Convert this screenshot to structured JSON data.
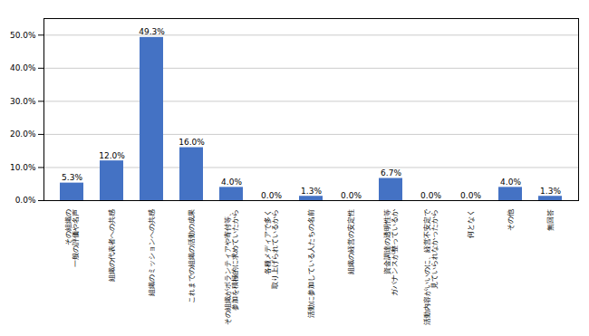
{
  "chart_data": {
    "type": "bar",
    "categories": [
      "その組織の\n一般の評価や名声",
      "組織の代表者への共感",
      "組織のミッションへの共感",
      "これまでの組織の活動の成果",
      "その組織がボランティアや寄付等、\n参加を積極的に求めていたから",
      "各種メディアで多く\n取り上げられているから",
      "活動に参加している人たちの名前",
      "組織の経営の安定性",
      "資金調達の透明性等\nガバナンスが整っているか",
      "活動内容がいいのに、経営不安定で\n見ていられなかったから",
      "何となく",
      "その他",
      "無回答"
    ],
    "values": [
      5.3,
      12.0,
      49.3,
      16.0,
      4.0,
      0.0,
      1.3,
      0.0,
      6.7,
      0.0,
      0.0,
      4.0,
      1.3
    ],
    "value_labels": [
      "5.3%",
      "12.0%",
      "49.3%",
      "16.0%",
      "4.0%",
      "0.0%",
      "1.3%",
      "0.0%",
      "6.7%",
      "0.0%",
      "0.0%",
      "4.0%",
      "1.3%"
    ],
    "data_labels": true,
    "color": "#4472C4",
    "ylim": [
      0,
      55
    ],
    "yticks": [
      {
        "value": 0,
        "label": "0.0%"
      },
      {
        "value": 10,
        "label": "10.0%"
      },
      {
        "value": 20,
        "label": "20.0%"
      },
      {
        "value": 30,
        "label": "30.0%"
      },
      {
        "value": 40,
        "label": "40.0%"
      },
      {
        "value": 50,
        "label": "50.0%"
      }
    ],
    "grid": true
  }
}
